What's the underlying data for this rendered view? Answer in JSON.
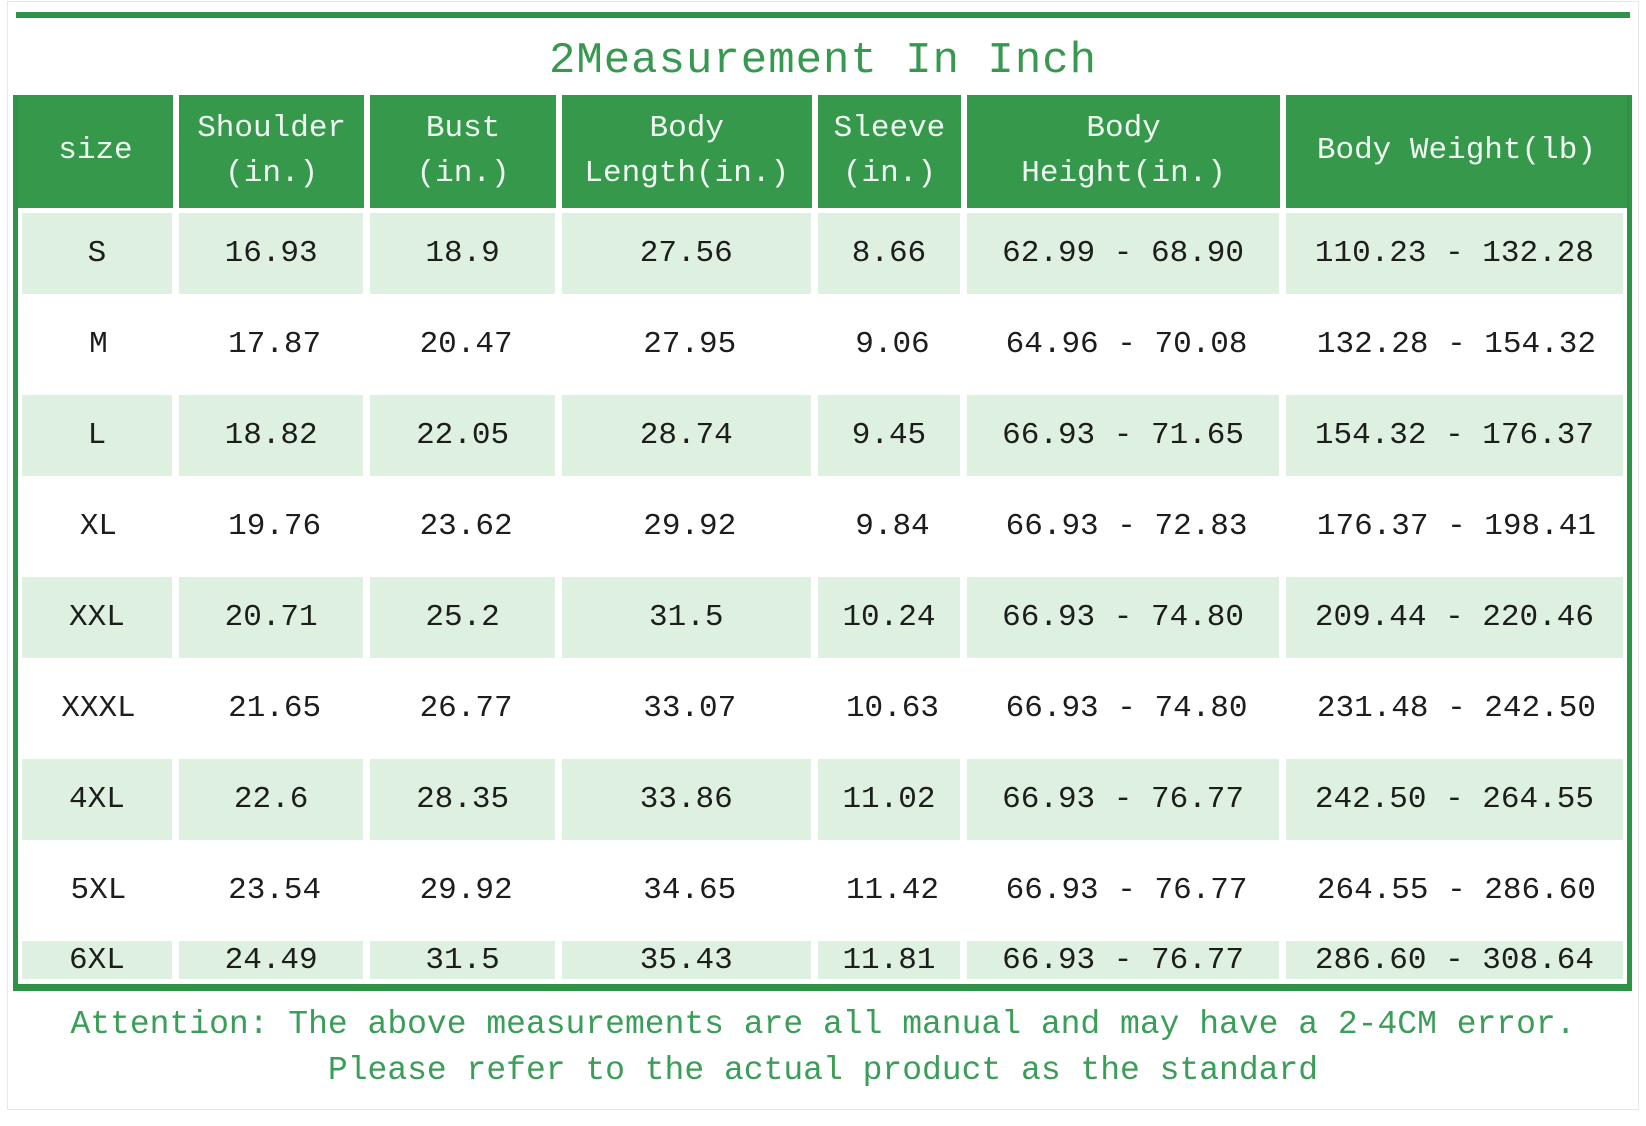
{
  "title": "2Measurement In Inch",
  "colors": {
    "border_green": "#2f9245",
    "header_green": "#35984b",
    "row_light_green": "#def0df",
    "title_green": "#36994f",
    "note_green": "#3b9e58",
    "header_text": "#eefaf1",
    "cell_text": "#1d1d1d"
  },
  "chart_data": {
    "type": "table",
    "title": "2Measurement In Inch",
    "columns": [
      "size",
      "Shoulder\n(in.)",
      "Bust\n(in.)",
      "Body\nLength(in.)",
      "Sleeve\n(in.)",
      "Body\nHeight(in.)",
      "Body Weight(lb)"
    ],
    "rows": [
      [
        "S",
        "16.93",
        "18.9",
        "27.56",
        "8.66",
        "62.99 - 68.90",
        "110.23 - 132.28"
      ],
      [
        "M",
        "17.87",
        "20.47",
        "27.95",
        "9.06",
        "64.96 - 70.08",
        "132.28 - 154.32"
      ],
      [
        "L",
        "18.82",
        "22.05",
        "28.74",
        "9.45",
        "66.93 - 71.65",
        "154.32 - 176.37"
      ],
      [
        "XL",
        "19.76",
        "23.62",
        "29.92",
        "9.84",
        "66.93 - 72.83",
        "176.37 - 198.41"
      ],
      [
        "XXL",
        "20.71",
        "25.2",
        "31.5",
        "10.24",
        "66.93 - 74.80",
        "209.44 - 220.46"
      ],
      [
        "XXXL",
        "21.65",
        "26.77",
        "33.07",
        "10.63",
        "66.93 - 74.80",
        "231.48 - 242.50"
      ],
      [
        "4XL",
        "22.6",
        "28.35",
        "33.86",
        "11.02",
        "66.93 - 76.77",
        "242.50 - 264.55"
      ],
      [
        "5XL",
        "23.54",
        "29.92",
        "34.65",
        "11.42",
        "66.93 - 76.77",
        "264.55 - 286.60"
      ],
      [
        "6XL",
        "24.49",
        "31.5",
        "35.43",
        "11.81",
        "66.93 - 76.77",
        "286.60 - 308.64"
      ]
    ]
  },
  "footer": {
    "line1": "Attention: The above measurements are all manual and may have a 2-4CM error.",
    "line2": "Please refer to the actual product as the standard"
  }
}
